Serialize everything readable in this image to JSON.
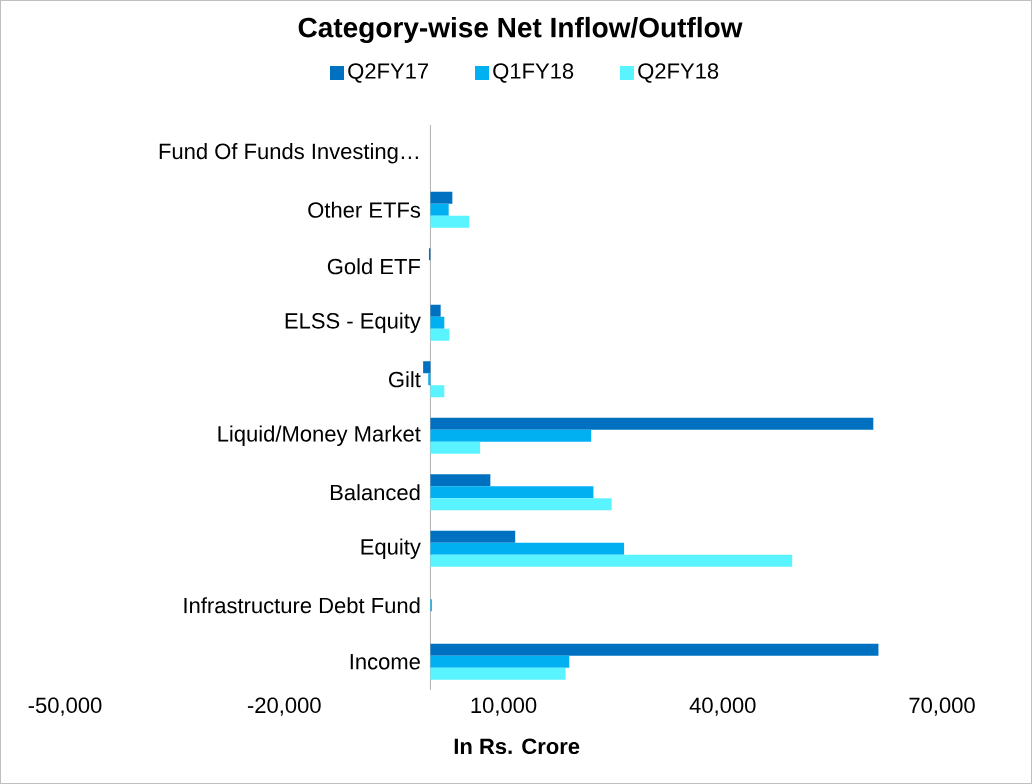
{
  "chart_data": {
    "type": "bar",
    "orientation": "horizontal",
    "title": "Category-wise Net Inflow/Outflow",
    "xlabel": "In Rs. Crore",
    "categories": [
      "Fund Of Funds Investing…",
      "Other ETFs",
      "Gold ETF",
      "ELSS - Equity",
      "Gilt",
      "Liquid/Money Market",
      "Balanced",
      "Equity",
      "Infrastructure Debt Fund",
      "Income"
    ],
    "series": [
      {
        "name": "Q2FY17",
        "color": "#0070c0",
        "values": [
          0,
          3000,
          -200,
          1400,
          -1000,
          60600,
          8200,
          11600,
          0,
          61300
        ]
      },
      {
        "name": "Q1FY18",
        "color": "#00b0f0",
        "values": [
          0,
          2500,
          null,
          1900,
          -300,
          22000,
          22300,
          26500,
          200,
          19000
        ]
      },
      {
        "name": "Q2FY18",
        "color": "#59f4ff",
        "values": [
          0,
          5300,
          null,
          2600,
          1900,
          6800,
          24800,
          49500,
          0,
          18500
        ]
      }
    ],
    "xlim": [
      -50000,
      70000
    ],
    "xticks": [
      {
        "value": -50000,
        "label": "-50,000"
      },
      {
        "value": -20000,
        "label": "-20,000"
      },
      {
        "value": 10000,
        "label": "10,000"
      },
      {
        "value": 40000,
        "label": "40,000"
      },
      {
        "value": 70000,
        "label": "70,000"
      }
    ],
    "grid": false,
    "legend": "top"
  }
}
